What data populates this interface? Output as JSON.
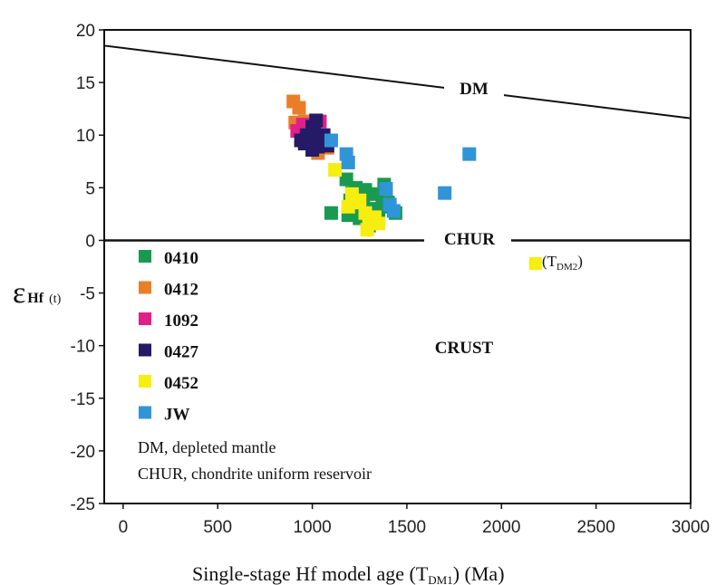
{
  "chart_data": {
    "type": "scatter",
    "title": "",
    "xlabel": "Single-stage Hf model age (T",
    "xlabel_sub": "DM1",
    "xlabel_tail": ") (Ma)",
    "ylabel_main": "ε",
    "ylabel_sub": "Hf",
    "ylabel_tail": "(t)",
    "xlim": [
      -100,
      3000
    ],
    "ylim": [
      -25,
      20
    ],
    "xticks": [
      0,
      500,
      1000,
      1500,
      2000,
      2500,
      3000
    ],
    "yticks": [
      20,
      15,
      10,
      5,
      0,
      -5,
      -10,
      -15,
      -20,
      -25
    ],
    "grid": false,
    "legend_position": "lower-left inside plot",
    "lines": [
      {
        "name": "DM",
        "x": [
          -100,
          3000
        ],
        "y": [
          18.5,
          11.6
        ]
      },
      {
        "name": "CHUR",
        "x": [
          -100,
          3000
        ],
        "y": [
          0,
          0
        ]
      }
    ],
    "annotations": {
      "dm": "DM",
      "chur": "CHUR",
      "crust": "CRUST",
      "tdm2_open": "(T",
      "tdm2_sub": "DM2",
      "tdm2_close": ")",
      "note1": "DM, depleted mantle",
      "note2": "CHUR, chondrite uniform reservoir"
    },
    "series": [
      {
        "name": "0410",
        "color": "#1a9a50",
        "x": [
          1100,
          1180,
          1230,
          1270,
          1310,
          1340,
          1380,
          1190,
          1250,
          1300,
          1350,
          1400,
          1440,
          1200,
          1280,
          1330,
          1370,
          1240,
          1300,
          1210
        ],
        "y": [
          2.6,
          5.8,
          5.0,
          4.2,
          3.0,
          4.4,
          5.3,
          2.4,
          2.1,
          2.8,
          2.2,
          3.6,
          2.6,
          3.8,
          4.8,
          2.0,
          3.2,
          2.8,
          1.4,
          4.5
        ]
      },
      {
        "name": "0412",
        "color": "#e87e2a",
        "x": [
          900,
          930,
          960,
          910,
          1000,
          1050,
          1080,
          940,
          1030
        ],
        "y": [
          13.2,
          12.6,
          11.3,
          11.2,
          10.2,
          9.8,
          8.8,
          10.5,
          8.3
        ]
      },
      {
        "name": "1092",
        "color": "#e0208a",
        "x": [
          920,
          950,
          990,
          1040
        ],
        "y": [
          10.4,
          11.0,
          10.9,
          11.3
        ]
      },
      {
        "name": "0427",
        "color": "#241a66",
        "x": [
          940,
          970,
          1000,
          1020,
          1050,
          1080,
          1000,
          990,
          960,
          1060,
          1010,
          1030
        ],
        "y": [
          9.5,
          10.0,
          10.8,
          11.4,
          9.4,
          9.0,
          8.6,
          9.9,
          9.2,
          10.0,
          10.5,
          8.9
        ],
        "note": ""
      },
      {
        "name": "0452",
        "color": "#f6ee10",
        "x": [
          1120,
          1190,
          1210,
          1250,
          1280,
          1300,
          1330,
          1350,
          1220,
          1290
        ],
        "y": [
          6.7,
          3.2,
          4.4,
          3.8,
          2.6,
          1.8,
          2.2,
          1.6,
          3.6,
          1.0
        ]
      },
      {
        "name": "JW",
        "color": "#2f95d8",
        "x": [
          1100,
          1180,
          1190,
          1390,
          1410,
          1430,
          1700,
          1830
        ],
        "y": [
          9.5,
          8.2,
          7.4,
          4.9,
          3.4,
          2.8,
          4.5,
          8.2
        ]
      }
    ],
    "tdm2_marker_color": "#f6ee10",
    "tdm2_marker": {
      "x": 2180,
      "y": -2.2
    }
  }
}
